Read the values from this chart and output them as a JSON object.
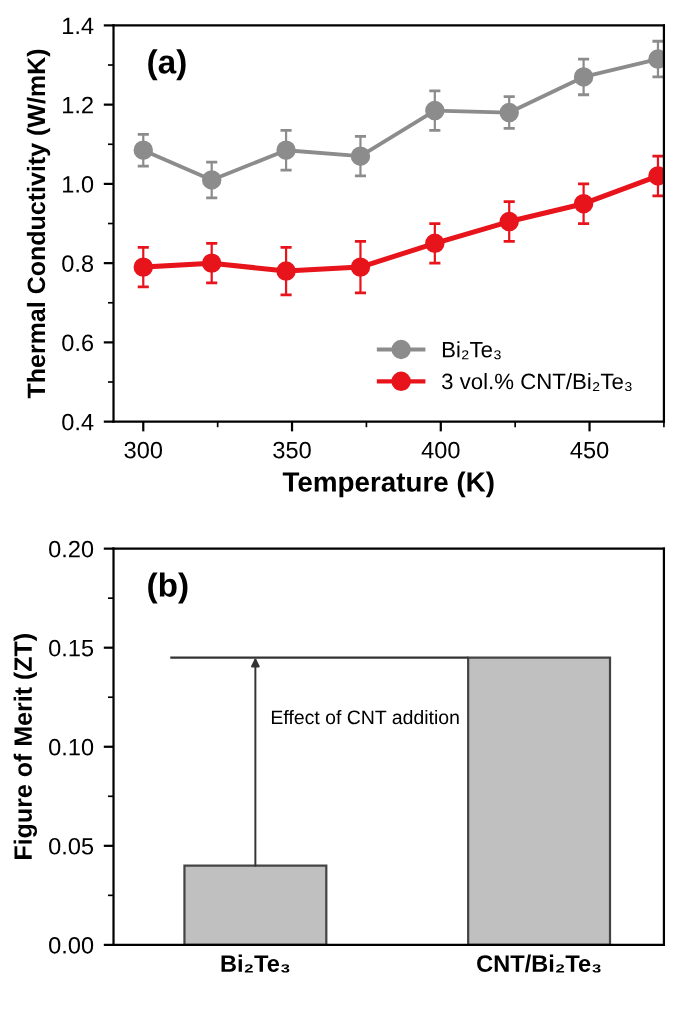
{
  "chart_data": [
    {
      "type": "line",
      "xlabel": "Temperature (K)",
      "ylabel": "Thermal Conductivity (W/mK)",
      "annotations": [
        "(a)"
      ],
      "x": [
        300,
        323,
        348,
        373,
        398,
        423,
        448,
        473
      ],
      "series": [
        {
          "name": "Bi₂Te₃",
          "color": "#8c8c8c",
          "values": [
            1.085,
            1.01,
            1.085,
            1.07,
            1.185,
            1.18,
            1.27,
            1.315
          ],
          "errors": [
            0.04,
            0.045,
            0.05,
            0.05,
            0.05,
            0.04,
            0.045,
            0.045
          ]
        },
        {
          "name": "3 vol.% CNT/Bi₂Te₃",
          "color": "#e8141b",
          "values": [
            0.79,
            0.8,
            0.78,
            0.79,
            0.85,
            0.905,
            0.95,
            1.02
          ],
          "errors": [
            0.05,
            0.05,
            0.06,
            0.065,
            0.05,
            0.05,
            0.05,
            0.05
          ]
        }
      ],
      "xlim": [
        290,
        475
      ],
      "xticks": [
        300,
        350,
        400,
        450
      ],
      "ylim": [
        0.4,
        1.4
      ],
      "yticks": [
        0.4,
        0.6,
        0.8,
        {
          "value": 1.0,
          "label": "1.0"
        },
        1.2,
        1.4
      ],
      "marker": "circle",
      "line_style": "solid",
      "grid": false,
      "legend": "bottom right"
    },
    {
      "type": "bar",
      "ylabel": "Figure of Merit (ZT)",
      "annotations": [
        "(b)",
        "Effect of CNT addition"
      ],
      "categories": [
        "Bi₂Te₃",
        "CNT/Bi₂Te₃"
      ],
      "values": [
        0.04,
        0.145
      ],
      "color": "#c0c0c0",
      "ylim": [
        0,
        0.2
      ],
      "yticks": [
        {
          "value": 0,
          "label": "0.00"
        },
        {
          "value": 0.05,
          "label": "0.05"
        },
        {
          "value": 0.1,
          "label": "0.10"
        },
        {
          "value": 0.15,
          "label": "0.15"
        },
        {
          "value": 0.2,
          "label": "0.20"
        }
      ],
      "ref_lines": [
        {
          "axis": "y",
          "value": 0.145,
          "color": "#333333"
        }
      ],
      "grid": false
    }
  ]
}
